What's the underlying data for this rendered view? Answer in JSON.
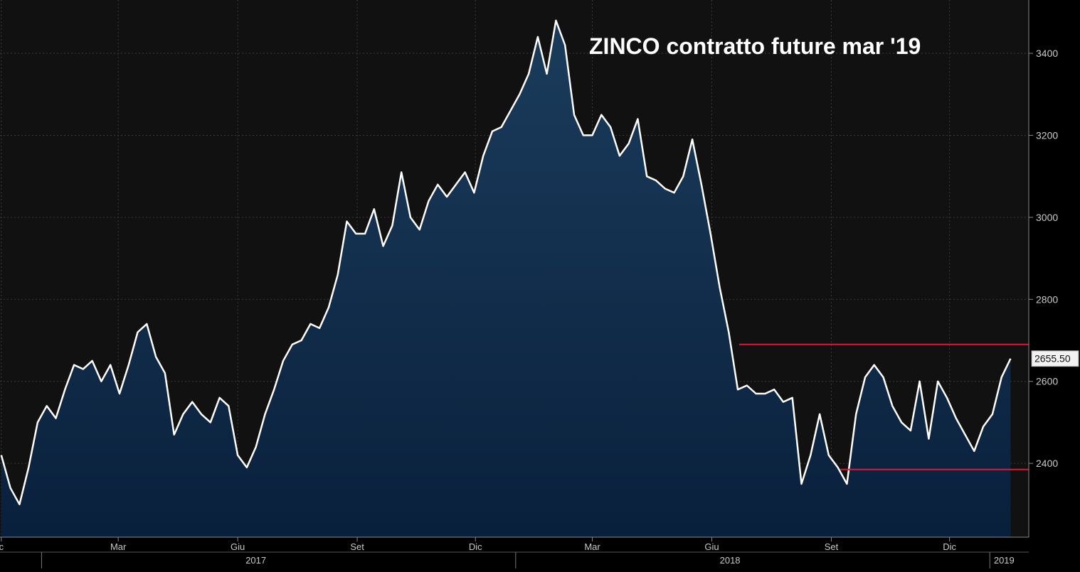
{
  "chart_data": {
    "type": "area",
    "title": "ZINCO contratto future mar '19",
    "xlabel": "",
    "ylabel": "",
    "ylim": [
      2220,
      3530
    ],
    "y_ticks": [
      2400,
      2600,
      2800,
      3000,
      3200,
      3400
    ],
    "grid": true,
    "last_value": "2655.50",
    "x_month_labels": [
      {
        "label": "c",
        "date": "2016-12-01"
      },
      {
        "label": "Mar",
        "date": "2017-03-01"
      },
      {
        "label": "Giu",
        "date": "2017-06-01"
      },
      {
        "label": "Set",
        "date": "2017-09-01"
      },
      {
        "label": "Dic",
        "date": "2017-12-01"
      },
      {
        "label": "Mar",
        "date": "2018-03-01"
      },
      {
        "label": "Giu",
        "date": "2018-06-01"
      },
      {
        "label": "Set",
        "date": "2018-09-01"
      },
      {
        "label": "Dic",
        "date": "2018-12-01"
      }
    ],
    "x_year_labels": [
      {
        "label": "2017",
        "date": "2017-06-15"
      },
      {
        "label": "2018",
        "date": "2018-06-15"
      },
      {
        "label": "2019",
        "date": "2019-01-12"
      }
    ],
    "year_separators": [
      "2017-01-01",
      "2018-01-01",
      "2019-01-01"
    ],
    "xlim": [
      "2016-11-30",
      "2019-01-31"
    ],
    "series": [
      {
        "x": [
          "2016-12-01",
          "2016-12-08",
          "2016-12-15",
          "2016-12-22",
          "2016-12-29",
          "2017-01-05",
          "2017-01-12",
          "2017-01-19",
          "2017-01-26",
          "2017-02-02",
          "2017-02-09",
          "2017-02-16",
          "2017-02-23",
          "2017-03-02",
          "2017-03-09",
          "2017-03-16",
          "2017-03-23",
          "2017-03-30",
          "2017-04-06",
          "2017-04-13",
          "2017-04-20",
          "2017-04-27",
          "2017-05-04",
          "2017-05-11",
          "2017-05-18",
          "2017-05-25",
          "2017-06-01",
          "2017-06-08",
          "2017-06-15",
          "2017-06-22",
          "2017-06-29",
          "2017-07-06",
          "2017-07-13",
          "2017-07-20",
          "2017-07-27",
          "2017-08-03",
          "2017-08-10",
          "2017-08-17",
          "2017-08-24",
          "2017-08-31",
          "2017-09-07",
          "2017-09-14",
          "2017-09-21",
          "2017-09-28",
          "2017-10-05",
          "2017-10-12",
          "2017-10-19",
          "2017-10-26",
          "2017-11-02",
          "2017-11-09",
          "2017-11-16",
          "2017-11-23",
          "2017-11-30",
          "2017-12-07",
          "2017-12-14",
          "2017-12-21",
          "2017-12-28",
          "2018-01-04",
          "2018-01-11",
          "2018-01-18",
          "2018-01-25",
          "2018-02-01",
          "2018-02-08",
          "2018-02-15",
          "2018-02-22",
          "2018-03-01",
          "2018-03-08",
          "2018-03-15",
          "2018-03-22",
          "2018-03-29",
          "2018-04-05",
          "2018-04-12",
          "2018-04-19",
          "2018-04-26",
          "2018-05-03",
          "2018-05-10",
          "2018-05-17",
          "2018-05-24",
          "2018-05-31",
          "2018-06-07",
          "2018-06-14",
          "2018-06-21",
          "2018-06-28",
          "2018-07-05",
          "2018-07-12",
          "2018-07-19",
          "2018-07-26",
          "2018-08-02",
          "2018-08-09",
          "2018-08-16",
          "2018-08-23",
          "2018-08-30",
          "2018-09-06",
          "2018-09-13",
          "2018-09-20",
          "2018-09-27",
          "2018-10-04",
          "2018-10-11",
          "2018-10-18",
          "2018-10-25",
          "2018-11-01",
          "2018-11-08",
          "2018-11-15",
          "2018-11-22",
          "2018-11-29",
          "2018-12-06",
          "2018-12-13",
          "2018-12-20",
          "2018-12-27",
          "2019-01-03",
          "2019-01-10",
          "2019-01-17"
        ],
        "values": [
          2420,
          2340,
          2300,
          2390,
          2500,
          2540,
          2510,
          2580,
          2640,
          2630,
          2650,
          2600,
          2640,
          2570,
          2640,
          2720,
          2740,
          2660,
          2620,
          2470,
          2520,
          2550,
          2520,
          2500,
          2560,
          2540,
          2420,
          2390,
          2440,
          2520,
          2580,
          2650,
          2690,
          2700,
          2740,
          2730,
          2780,
          2860,
          2990,
          2960,
          2960,
          3020,
          2930,
          2980,
          3110,
          3000,
          2970,
          3040,
          3080,
          3050,
          3080,
          3110,
          3060,
          3150,
          3210,
          3220,
          3260,
          3300,
          3350,
          3440,
          3350,
          3480,
          3420,
          3250,
          3200,
          3200,
          3250,
          3220,
          3150,
          3180,
          3240,
          3100,
          3090,
          3070,
          3060,
          3100,
          3190,
          3080,
          2960,
          2830,
          2720,
          2580,
          2590,
          2570,
          2570,
          2580,
          2550,
          2560,
          2350,
          2420,
          2520,
          2420,
          2390,
          2350,
          2520,
          2610,
          2640,
          2610,
          2540,
          2500,
          2480,
          2600,
          2460,
          2600,
          2560,
          2510,
          2470,
          2430,
          2490,
          2520,
          2610,
          2655.5
        ]
      }
    ],
    "reference_lines": [
      {
        "value": 2690,
        "from": "2018-06-22",
        "to": "2019-01-31"
      },
      {
        "value": 2385,
        "from": "2018-09-08",
        "to": "2019-01-31"
      }
    ],
    "colors": {
      "background": "#111111",
      "area_top": "#1b3c5c",
      "area_bottom": "#09203c",
      "line": "#ffffff",
      "reference_line": "#e0173a",
      "grid": "#3a3a3a",
      "axis_text": "#c8c8c8"
    }
  }
}
